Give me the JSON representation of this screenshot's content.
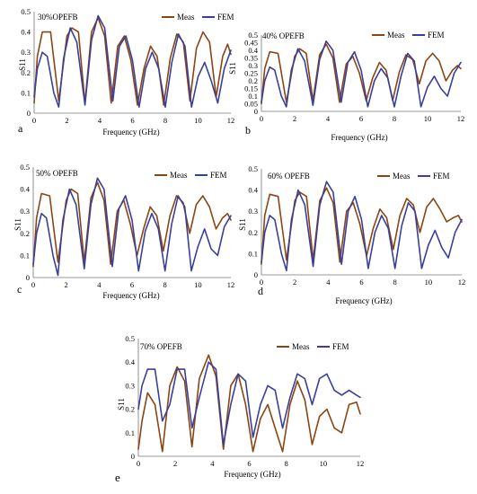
{
  "colors": {
    "meas": "#8B4513",
    "fem": "#3A3F9A"
  },
  "chart_data": [
    {
      "type": "line",
      "panel_label": "a",
      "title": "30%OPEFB",
      "xlabel": "Frequency (GHz)",
      "ylabel": "S11",
      "xlim": [
        0,
        12
      ],
      "ylim": [
        0,
        0.5
      ],
      "xticks": [
        "0",
        "2",
        "4",
        "6",
        "8",
        "10",
        "12"
      ],
      "yticks": [
        "0",
        "0.1",
        "0.2",
        "0.3",
        "0.4",
        "0.5"
      ],
      "legend": "top-right",
      "series": [
        {
          "name": "Meas",
          "color": "meas",
          "x": [
            0,
            0.2,
            0.5,
            1.0,
            1.5,
            2.0,
            2.3,
            2.7,
            3.1,
            3.5,
            3.9,
            4.3,
            4.7,
            5.1,
            5.5,
            5.9,
            6.3,
            6.7,
            7.1,
            7.5,
            7.9,
            8.3,
            8.7,
            9.1,
            9.5,
            9.9,
            10.3,
            10.7,
            11.1,
            11.5,
            11.8,
            12
          ],
          "y": [
            0.05,
            0.28,
            0.4,
            0.4,
            0.06,
            0.38,
            0.42,
            0.4,
            0.05,
            0.4,
            0.47,
            0.38,
            0.05,
            0.33,
            0.38,
            0.26,
            0.04,
            0.22,
            0.33,
            0.28,
            0.04,
            0.27,
            0.39,
            0.35,
            0.06,
            0.32,
            0.4,
            0.35,
            0.08,
            0.28,
            0.34,
            0.29
          ]
        },
        {
          "name": "FEM",
          "color": "fem",
          "x": [
            0,
            0.2,
            0.5,
            0.8,
            1.2,
            1.5,
            1.8,
            2.2,
            2.6,
            3.1,
            3.5,
            3.9,
            4.3,
            4.8,
            5.2,
            5.6,
            6.0,
            6.4,
            6.8,
            7.2,
            7.6,
            8.0,
            8.4,
            8.8,
            9.2,
            9.6,
            10.0,
            10.4,
            10.8,
            11.2,
            11.6,
            12
          ],
          "y": [
            0.08,
            0.22,
            0.3,
            0.28,
            0.1,
            0.03,
            0.27,
            0.42,
            0.35,
            0.04,
            0.36,
            0.48,
            0.42,
            0.06,
            0.33,
            0.38,
            0.26,
            0.03,
            0.22,
            0.3,
            0.22,
            0.03,
            0.25,
            0.39,
            0.33,
            0.03,
            0.18,
            0.25,
            0.16,
            0.05,
            0.22,
            0.31
          ]
        }
      ]
    },
    {
      "type": "line",
      "panel_label": "b",
      "title": "40% OPEFB",
      "xlabel": "Frequency (GHz)",
      "ylabel": "S11",
      "xlim": [
        0,
        12
      ],
      "ylim": [
        0,
        0.5
      ],
      "xticks": [
        "0",
        "2",
        "4",
        "6",
        "8",
        "10",
        "12"
      ],
      "yticks": [
        "0",
        "0.05",
        "0.1",
        "0.15",
        "0.2",
        "0.25",
        "0.3",
        "0.35",
        "0.4",
        "0.45",
        "0.5"
      ],
      "legend": "top-right",
      "series": [
        {
          "name": "Meas",
          "color": "meas",
          "x": [
            0,
            0.2,
            0.5,
            1.0,
            1.5,
            2.0,
            2.3,
            2.7,
            3.1,
            3.5,
            3.9,
            4.3,
            4.7,
            5.1,
            5.5,
            5.9,
            6.3,
            6.7,
            7.1,
            7.5,
            7.9,
            8.3,
            8.7,
            9.1,
            9.5,
            9.9,
            10.3,
            10.7,
            11.1,
            11.5,
            11.8,
            12
          ],
          "y": [
            0.05,
            0.28,
            0.39,
            0.38,
            0.06,
            0.36,
            0.41,
            0.38,
            0.07,
            0.37,
            0.44,
            0.35,
            0.06,
            0.31,
            0.36,
            0.25,
            0.07,
            0.22,
            0.32,
            0.27,
            0.07,
            0.26,
            0.37,
            0.34,
            0.18,
            0.33,
            0.38,
            0.33,
            0.2,
            0.27,
            0.3,
            0.28
          ]
        },
        {
          "name": "FEM",
          "color": "fem",
          "x": [
            0,
            0.2,
            0.5,
            0.8,
            1.2,
            1.5,
            1.8,
            2.2,
            2.6,
            3.1,
            3.5,
            3.9,
            4.3,
            4.8,
            5.2,
            5.6,
            6.0,
            6.4,
            6.8,
            7.2,
            7.6,
            8.0,
            8.4,
            8.8,
            9.2,
            9.6,
            10.0,
            10.4,
            10.8,
            11.2,
            11.6,
            12
          ],
          "y": [
            0.06,
            0.2,
            0.29,
            0.27,
            0.1,
            0.03,
            0.27,
            0.41,
            0.33,
            0.04,
            0.34,
            0.46,
            0.4,
            0.06,
            0.32,
            0.39,
            0.27,
            0.03,
            0.2,
            0.28,
            0.22,
            0.03,
            0.23,
            0.38,
            0.33,
            0.03,
            0.16,
            0.23,
            0.15,
            0.1,
            0.25,
            0.32
          ]
        }
      ]
    },
    {
      "type": "line",
      "panel_label": "c",
      "title": "50% OPEFB",
      "xlabel": "Frequency (GHz)",
      "ylabel": "S11",
      "xlim": [
        0,
        12
      ],
      "ylim": [
        0,
        0.5
      ],
      "xticks": [
        "0",
        "2",
        "4",
        "6",
        "8",
        "10",
        "12"
      ],
      "yticks": [
        "0",
        "0.1",
        "0.2",
        "0.3",
        "0.4",
        "0.5"
      ],
      "legend": "top-right",
      "series": [
        {
          "name": "Meas",
          "color": "meas",
          "x": [
            0,
            0.2,
            0.5,
            1.0,
            1.5,
            2.0,
            2.3,
            2.7,
            3.1,
            3.5,
            3.9,
            4.3,
            4.7,
            5.1,
            5.5,
            5.9,
            6.3,
            6.7,
            7.1,
            7.5,
            7.9,
            8.3,
            8.7,
            9.1,
            9.5,
            9.9,
            10.3,
            10.7,
            11.1,
            11.5,
            11.8,
            12
          ],
          "y": [
            0.05,
            0.27,
            0.38,
            0.37,
            0.07,
            0.35,
            0.4,
            0.38,
            0.07,
            0.36,
            0.43,
            0.35,
            0.06,
            0.3,
            0.35,
            0.24,
            0.1,
            0.22,
            0.32,
            0.28,
            0.12,
            0.28,
            0.37,
            0.34,
            0.2,
            0.33,
            0.37,
            0.32,
            0.22,
            0.27,
            0.29,
            0.26
          ]
        },
        {
          "name": "FEM",
          "color": "fem",
          "x": [
            0,
            0.2,
            0.5,
            0.8,
            1.2,
            1.5,
            1.8,
            2.2,
            2.6,
            3.1,
            3.5,
            3.9,
            4.3,
            4.8,
            5.2,
            5.6,
            6.0,
            6.4,
            6.8,
            7.2,
            7.6,
            8.0,
            8.4,
            8.8,
            9.2,
            9.6,
            10.0,
            10.4,
            10.8,
            11.2,
            11.6,
            12
          ],
          "y": [
            0.06,
            0.2,
            0.29,
            0.27,
            0.1,
            0.01,
            0.26,
            0.4,
            0.33,
            0.04,
            0.33,
            0.45,
            0.4,
            0.05,
            0.31,
            0.37,
            0.26,
            0.03,
            0.21,
            0.29,
            0.22,
            0.03,
            0.24,
            0.37,
            0.32,
            0.03,
            0.14,
            0.22,
            0.13,
            0.1,
            0.23,
            0.28
          ]
        }
      ]
    },
    {
      "type": "line",
      "panel_label": "d",
      "title": "60% OPEFB",
      "xlabel": "Frequency (GHz)",
      "ylabel": "S11",
      "xlim": [
        0,
        12
      ],
      "ylim": [
        0,
        0.5
      ],
      "xticks": [
        "0",
        "2",
        "4",
        "6",
        "8",
        "10",
        "12"
      ],
      "yticks": [
        "0",
        "0.1",
        "0.2",
        "0.3",
        "0.4",
        "0.5"
      ],
      "legend": "top-right",
      "series": [
        {
          "name": "Meas",
          "color": "meas",
          "x": [
            0,
            0.2,
            0.5,
            1.0,
            1.5,
            2.0,
            2.3,
            2.7,
            3.1,
            3.5,
            3.9,
            4.3,
            4.7,
            5.1,
            5.5,
            5.9,
            6.3,
            6.7,
            7.1,
            7.5,
            7.9,
            8.3,
            8.7,
            9.1,
            9.5,
            9.9,
            10.3,
            10.7,
            11.1,
            11.5,
            11.8,
            12
          ],
          "y": [
            0.05,
            0.28,
            0.38,
            0.37,
            0.07,
            0.35,
            0.39,
            0.37,
            0.07,
            0.35,
            0.41,
            0.34,
            0.06,
            0.3,
            0.34,
            0.24,
            0.09,
            0.22,
            0.31,
            0.27,
            0.12,
            0.28,
            0.36,
            0.33,
            0.2,
            0.32,
            0.36,
            0.31,
            0.25,
            0.27,
            0.28,
            0.25
          ]
        },
        {
          "name": "FEM",
          "color": "fem",
          "x": [
            0,
            0.2,
            0.5,
            0.8,
            1.2,
            1.5,
            1.8,
            2.2,
            2.6,
            3.1,
            3.5,
            3.9,
            4.3,
            4.8,
            5.2,
            5.6,
            6.0,
            6.4,
            6.8,
            7.2,
            7.6,
            8.0,
            8.4,
            8.8,
            9.2,
            9.6,
            10.0,
            10.4,
            10.8,
            11.2,
            11.6,
            12
          ],
          "y": [
            0.06,
            0.2,
            0.28,
            0.26,
            0.1,
            0.02,
            0.26,
            0.4,
            0.33,
            0.04,
            0.33,
            0.44,
            0.39,
            0.05,
            0.3,
            0.37,
            0.26,
            0.03,
            0.2,
            0.28,
            0.22,
            0.03,
            0.23,
            0.34,
            0.3,
            0.03,
            0.14,
            0.21,
            0.13,
            0.08,
            0.2,
            0.26
          ]
        }
      ]
    },
    {
      "type": "line",
      "panel_label": "e",
      "title": "70% OPEFB",
      "xlabel": "Frequency (GHz)",
      "ylabel": "S11",
      "xlim": [
        0,
        12
      ],
      "ylim": [
        0,
        0.5
      ],
      "xticks": [
        "0",
        "2",
        "4",
        "6",
        "8",
        "10",
        "12"
      ],
      "yticks": [
        "0",
        "0.1",
        "0.2",
        "0.3",
        "0.4",
        "0.5"
      ],
      "legend": "top-right",
      "series": [
        {
          "name": "Meas",
          "color": "meas",
          "x": [
            0,
            0.2,
            0.5,
            0.9,
            1.3,
            1.7,
            2.1,
            2.5,
            2.9,
            3.3,
            3.8,
            4.2,
            4.6,
            5.0,
            5.4,
            5.8,
            6.2,
            6.6,
            7.0,
            7.4,
            7.8,
            8.2,
            8.6,
            9.0,
            9.4,
            9.8,
            10.2,
            10.6,
            11.0,
            11.4,
            11.8,
            12
          ],
          "y": [
            0.03,
            0.15,
            0.27,
            0.22,
            0.02,
            0.3,
            0.38,
            0.32,
            0.04,
            0.33,
            0.43,
            0.34,
            0.03,
            0.3,
            0.35,
            0.22,
            0.02,
            0.16,
            0.22,
            0.12,
            0.02,
            0.22,
            0.32,
            0.24,
            0.05,
            0.17,
            0.2,
            0.12,
            0.1,
            0.22,
            0.23,
            0.18
          ]
        },
        {
          "name": "FEM",
          "color": "fem",
          "x": [
            0,
            0.2,
            0.5,
            0.9,
            1.3,
            1.7,
            2.1,
            2.5,
            2.9,
            3.3,
            3.8,
            4.2,
            4.6,
            5.0,
            5.4,
            5.8,
            6.2,
            6.6,
            7.0,
            7.4,
            7.8,
            8.2,
            8.6,
            9.0,
            9.4,
            9.8,
            10.2,
            10.6,
            11.0,
            11.4,
            11.8,
            12
          ],
          "y": [
            0.2,
            0.3,
            0.37,
            0.37,
            0.15,
            0.22,
            0.37,
            0.37,
            0.12,
            0.25,
            0.4,
            0.37,
            0.05,
            0.22,
            0.35,
            0.32,
            0.08,
            0.22,
            0.3,
            0.28,
            0.12,
            0.25,
            0.35,
            0.33,
            0.22,
            0.33,
            0.35,
            0.28,
            0.26,
            0.28,
            0.26,
            0.25
          ]
        }
      ]
    }
  ]
}
